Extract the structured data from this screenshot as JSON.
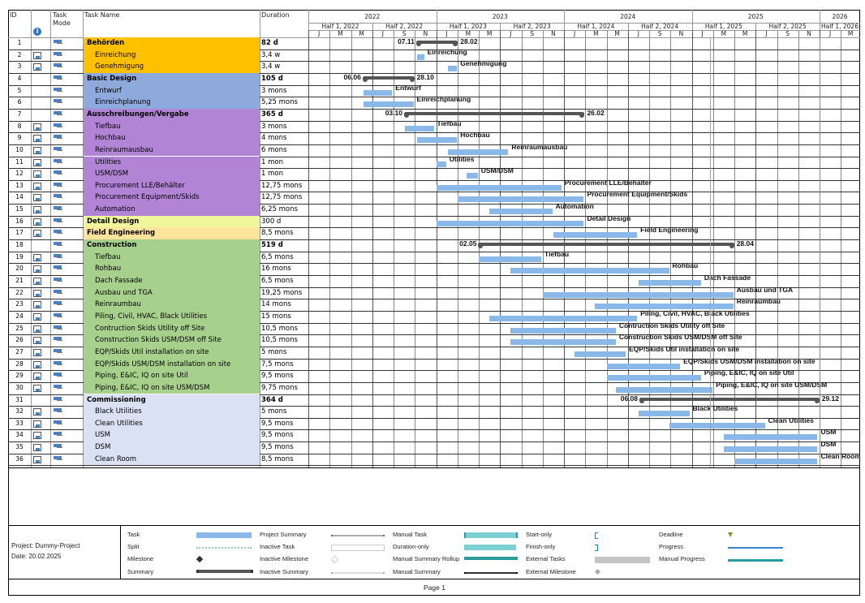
{
  "table": {
    "headers": {
      "id": "ID",
      "info": "i",
      "mode": "Task Mode",
      "name": "Task Name",
      "duration": "Duration"
    },
    "rows": [
      {
        "id": "1",
        "cal": false,
        "name": "Behörden",
        "duration": "82 d",
        "summary": true,
        "color": "#FFC000",
        "start": "2022-11-07",
        "end": "2023-02-28",
        "start_label": "07.11",
        "end_label": "28.02"
      },
      {
        "id": "2",
        "cal": true,
        "name": "Einreichung",
        "duration": "3,4 w",
        "color": "#FFC000",
        "start": "2022-11-07",
        "end": "2022-11-27",
        "label": "Einreichung"
      },
      {
        "id": "3",
        "cal": true,
        "name": "Genehmigung",
        "duration": "3,4 w",
        "color": "#FFC000",
        "start": "2023-02-03",
        "end": "2023-02-28",
        "label": "Genehmigung"
      },
      {
        "id": "4",
        "cal": false,
        "name": "Basic Design",
        "duration": "105 d",
        "summary": true,
        "color": "#8EA9DB",
        "start": "2022-06-06",
        "end": "2022-10-28",
        "start_label": "06.06",
        "end_label": "28.10"
      },
      {
        "id": "5",
        "cal": false,
        "name": "Entwurf",
        "duration": "3 mons",
        "color": "#8EA9DB",
        "start": "2022-06-06",
        "end": "2022-08-28",
        "label": "Entwurf"
      },
      {
        "id": "6",
        "cal": false,
        "name": "Einreichplanung",
        "duration": "5,25 mons",
        "color": "#8EA9DB",
        "start": "2022-06-06",
        "end": "2022-10-28",
        "label": "Einreichplanung"
      },
      {
        "id": "7",
        "cal": false,
        "name": "Ausschreibungen/Vergabe",
        "duration": "365 d",
        "summary": true,
        "color": "#B284D6",
        "start": "2022-10-03",
        "end": "2024-02-26",
        "start_label": "03.10",
        "end_label": "26.02"
      },
      {
        "id": "8",
        "cal": true,
        "name": "Tiefbau",
        "duration": "3 mons",
        "color": "#B284D6",
        "start": "2022-10-03",
        "end": "2022-12-25",
        "label": "Tiefbau"
      },
      {
        "id": "9",
        "cal": true,
        "name": "Hochbau",
        "duration": "4 mons",
        "color": "#B284D6",
        "start": "2022-11-07",
        "end": "2023-02-28",
        "label": "Hochbau"
      },
      {
        "id": "10",
        "cal": true,
        "name": "Reinraumausbau",
        "duration": "6 mons",
        "color": "#B284D6",
        "start": "2023-02-03",
        "end": "2023-07-25",
        "label": "Reinraumausbau"
      },
      {
        "id": "11",
        "cal": true,
        "name": "Utilities",
        "duration": "1 mon",
        "color": "#B284D6",
        "start": "2023-01-02",
        "end": "2023-01-30",
        "label": "Utilities"
      },
      {
        "id": "12",
        "cal": true,
        "name": "USM/DSM",
        "duration": "1 mon",
        "color": "#B284D6",
        "start": "2023-03-28",
        "end": "2023-04-28",
        "label": "USM/DSM"
      },
      {
        "id": "13",
        "cal": true,
        "name": "Procurement LLE/Behälter",
        "duration": "12,75 mons",
        "color": "#B284D6",
        "start": "2023-01-02",
        "end": "2023-12-24",
        "label": "Procurement LLE/Behälter"
      },
      {
        "id": "14",
        "cal": true,
        "name": "Procurement Equipment/Skids",
        "duration": "12,75 mons",
        "color": "#B284D6",
        "start": "2023-03-01",
        "end": "2024-02-26",
        "label": "Procurement Equipment/Skids"
      },
      {
        "id": "15",
        "cal": true,
        "name": "Automation",
        "duration": "6,25 mons",
        "color": "#B284D6",
        "start": "2023-06-01",
        "end": "2023-11-28",
        "label": "Automation"
      },
      {
        "id": "16",
        "cal": true,
        "name": "Detail Design",
        "duration": "300 d",
        "top": true,
        "color": "#EFF79A",
        "start": "2023-01-02",
        "end": "2024-02-26",
        "label": "Detail Design"
      },
      {
        "id": "17",
        "cal": true,
        "name": "Field Engineering",
        "duration": "8,5 mons",
        "top": true,
        "color": "#FFE49C",
        "start": "2023-12-01",
        "end": "2024-07-28",
        "label": "Field Engineering"
      },
      {
        "id": "18",
        "cal": false,
        "name": "Construction",
        "duration": "519 d",
        "summary": true,
        "color": "#A8D08D",
        "start": "2023-05-02",
        "end": "2025-04-28",
        "start_label": "02.05",
        "end_label": "28.04"
      },
      {
        "id": "19",
        "cal": true,
        "name": "Tiefbau",
        "duration": "6,5 mons",
        "color": "#A8D08D",
        "start": "2023-05-02",
        "end": "2023-10-28",
        "label": "Tiefbau"
      },
      {
        "id": "20",
        "cal": true,
        "name": "Rohbau",
        "duration": "16 mons",
        "color": "#A8D08D",
        "start": "2023-08-01",
        "end": "2024-10-28",
        "label": "Rohbau"
      },
      {
        "id": "21",
        "cal": true,
        "name": "Dach Fassade",
        "duration": "6,5 mons",
        "color": "#A8D08D",
        "start": "2024-08-01",
        "end": "2025-01-28",
        "label": "Dach Fassade"
      },
      {
        "id": "22",
        "cal": true,
        "name": "Ausbau und TGA",
        "duration": "19,25 mons",
        "color": "#A8D08D",
        "start": "2023-11-01",
        "end": "2025-04-28",
        "label": "Ausbau und TGA"
      },
      {
        "id": "23",
        "cal": true,
        "name": "Reinraumbau",
        "duration": "14 mons",
        "color": "#A8D08D",
        "start": "2024-03-28",
        "end": "2025-04-28",
        "label": "Reinraumbau"
      },
      {
        "id": "24",
        "cal": true,
        "name": "Piling, Civil, HVAC, Black Utilities",
        "duration": "15 mons",
        "color": "#A8D08D",
        "start": "2023-06-01",
        "end": "2024-07-28",
        "label": "Piling, Civil, HVAC, Black Utilities"
      },
      {
        "id": "25",
        "cal": true,
        "name": "Contruction Skids Utility off Site",
        "duration": "10,5 mons",
        "color": "#A8D08D",
        "start": "2023-08-01",
        "end": "2024-05-28",
        "label": "Contruction Skids Utility off Site"
      },
      {
        "id": "26",
        "cal": true,
        "name": "Construction Skids USM/DSM off Site",
        "duration": "10,5 mons",
        "color": "#A8D08D",
        "start": "2023-08-01",
        "end": "2024-05-28",
        "label": "Construction Skids USM/DSM off Site"
      },
      {
        "id": "27",
        "cal": true,
        "name": "EQP/Skids Util installation on site",
        "duration": "5 mons",
        "color": "#A8D08D",
        "start": "2024-02-01",
        "end": "2024-06-25",
        "label": "EQP/Skids Util installation on site"
      },
      {
        "id": "28",
        "cal": true,
        "name": "EQP/Skids USM/DSM installation on site",
        "duration": "7,5 mons",
        "color": "#A8D08D",
        "start": "2024-05-01",
        "end": "2024-11-28",
        "label": "EQP/Skids USM/DSM installation on site"
      },
      {
        "id": "29",
        "cal": true,
        "name": "Piping, E&IC, IQ on site Util",
        "duration": "9,5 mons",
        "color": "#A8D08D",
        "start": "2024-05-01",
        "end": "2025-01-28",
        "label": "Piping, E&IC, IQ on site Util"
      },
      {
        "id": "30",
        "cal": true,
        "name": "Piping, E&IC, IQ on site USM/DSM",
        "duration": "9,75 mons",
        "color": "#A8D08D",
        "start": "2024-05-28",
        "end": "2025-02-28",
        "label": "Piping, E&IC, IQ on site USM/DSM"
      },
      {
        "id": "31",
        "cal": false,
        "name": "Commissioning",
        "duration": "364 d",
        "summary": true,
        "color": "#D9E1F2",
        "start": "2024-08-06",
        "end": "2025-12-29",
        "start_label": "06.08",
        "end_label": "29.12"
      },
      {
        "id": "32",
        "cal": true,
        "name": "Black Utilities",
        "duration": "5 mons",
        "color": "#D9E1F2",
        "start": "2024-08-01",
        "end": "2024-12-25",
        "label": "Black Utilities"
      },
      {
        "id": "33",
        "cal": true,
        "name": "Clean Utilities",
        "duration": "9,5 mons",
        "color": "#D9E1F2",
        "start": "2024-10-28",
        "end": "2025-07-28",
        "label": "Clean Utilities"
      },
      {
        "id": "34",
        "cal": true,
        "name": "USM",
        "duration": "9,5 mons",
        "color": "#D9E1F2",
        "start": "2025-04-01",
        "end": "2025-12-26",
        "label": "USM"
      },
      {
        "id": "35",
        "cal": true,
        "name": "DSM",
        "duration": "9,5 mons",
        "color": "#D9E1F2",
        "start": "2025-04-01",
        "end": "2025-12-26",
        "label": "DSM"
      },
      {
        "id": "36",
        "cal": true,
        "name": "Clean Room",
        "duration": "8,5 mons",
        "color": "#D9E1F2",
        "start": "2025-05-01",
        "end": "2025-12-26",
        "label": "Clean Room"
      }
    ]
  },
  "timescale": {
    "years": [
      "2022",
      "2023",
      "2024",
      "2025",
      "2026"
    ],
    "halves": [
      "Half 1, 2022",
      "Half 2, 2022",
      "Half 1, 2023",
      "Half 2, 2023",
      "Half 1, 2024",
      "Half 2, 2024",
      "Half 1, 2025",
      "Half 2, 2025",
      "Half 1, 2026"
    ],
    "months": [
      "J",
      "M",
      "M",
      "J",
      "S",
      "N"
    ],
    "today": "2025-02-20"
  },
  "colors": {
    "task": "#8AB8E9",
    "summary": "#555555",
    "today": "#7DBF6E"
  },
  "footer": {
    "project": "Project: Dummy-Project",
    "date": "Date: 20.02.2025",
    "page": "Page 1",
    "legend": [
      [
        "Task",
        "Split",
        "Milestone",
        "Summary"
      ],
      [
        "Project Summary",
        "Inactive Task",
        "Inactive Milestone",
        "Inactive Summary"
      ],
      [
        "Manual Task",
        "Duration-only",
        "Manual Summary Rollup",
        "Manual Summary"
      ],
      [
        "Start-only",
        "Finish-only",
        "External Tasks",
        "External Milestone"
      ],
      [
        "Deadline",
        "Progress",
        "Manual Progress"
      ]
    ]
  }
}
